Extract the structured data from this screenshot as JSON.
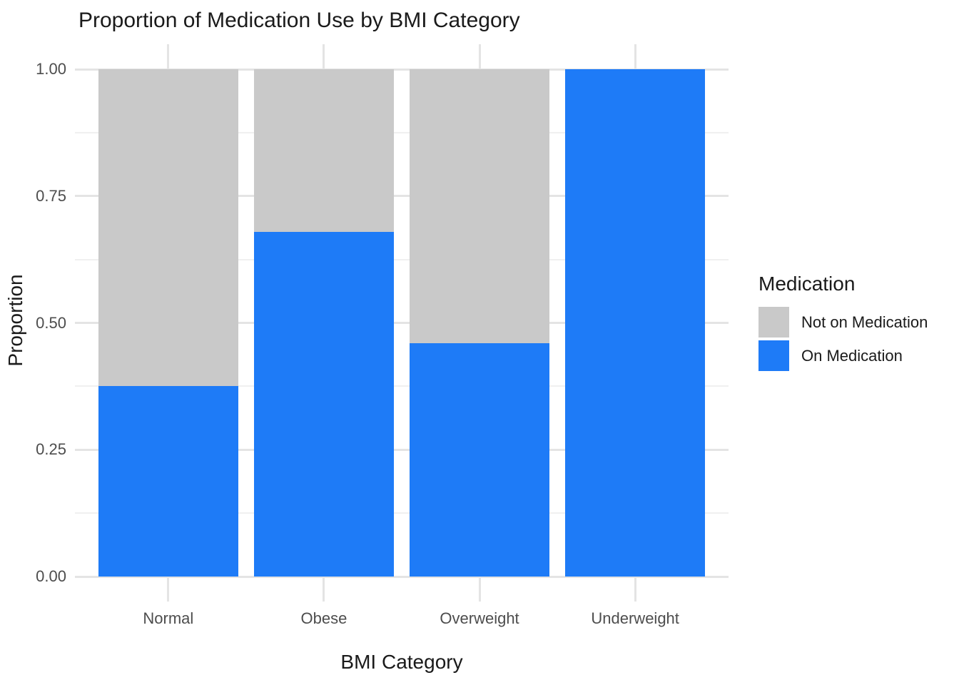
{
  "chart_data": {
    "type": "bar",
    "stacked": true,
    "title": "Proportion of Medication Use by BMI Category",
    "xlabel": "BMI Category",
    "ylabel": "Proportion",
    "categories": [
      "Normal",
      "Obese",
      "Overweight",
      "Underweight"
    ],
    "series": [
      {
        "name": "On Medication",
        "color": "#1E7BF7",
        "values": [
          0.375,
          0.68,
          0.46,
          1.0
        ]
      },
      {
        "name": "Not on Medication",
        "color": "#C9C9C9",
        "values": [
          0.625,
          0.32,
          0.54,
          0.0
        ]
      }
    ],
    "ylim": [
      0,
      1
    ],
    "ytick_values": [
      0,
      0.25,
      0.5,
      0.75,
      1
    ],
    "ytick_labels": [
      "0.00",
      "0.25",
      "0.50",
      "0.75",
      "1.00"
    ],
    "yminor_values": [
      0.125,
      0.375,
      0.625,
      0.875
    ],
    "grid": "horizontal major+minor gridlines; vertical major gridline at each category; no axis lines; white background",
    "bar_width_fraction": 0.9,
    "legend": {
      "title": "Medication",
      "position": "right",
      "items": [
        {
          "label": "Not on Medication",
          "color": "#C9C9C9"
        },
        {
          "label": "On Medication",
          "color": "#1E7BF7"
        }
      ]
    },
    "colors": {
      "grid_major": "#E4E4E4",
      "grid_minor": "#F0F0F0",
      "tick_text": "#4D4D4D",
      "title_text": "#1A1A1A",
      "background": "#FFFFFF"
    }
  }
}
